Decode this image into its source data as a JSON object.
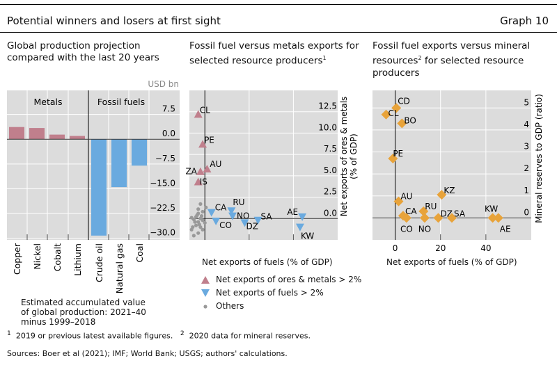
{
  "header": {
    "title": "Potential winners and losers at first sight",
    "graph_label": "Graph 10"
  },
  "chart_data": [
    {
      "type": "bar",
      "title": "Global production projection compared with the last 20 years",
      "unit": "USD bn",
      "groups": [
        "Metals",
        "Fossil fuels"
      ],
      "categories": [
        "Copper",
        "Nickel",
        "Cobalt",
        "Lithium",
        "Crude oil",
        "Natural gas",
        "Coal"
      ],
      "values": [
        3.7,
        3.4,
        1.4,
        1.0,
        -29.2,
        -14.5,
        -8.0
      ],
      "group_of": [
        0,
        0,
        0,
        0,
        1,
        1,
        1
      ],
      "yticks": [
        "7.5",
        "0.0",
        "−7.5",
        "−15.0",
        "−22.5",
        "−30.0"
      ],
      "ytick_values": [
        7.5,
        0,
        -7.5,
        -15,
        -22.5,
        -30
      ],
      "ylim": [
        -30.5,
        14.8
      ],
      "note": "Estimated accumulated value of global production: 2021–40 minus 1999–2018",
      "colors": {
        "metals": "#c07f8c",
        "fuels": "#6aaadf"
      }
    },
    {
      "type": "scatter",
      "title": "Fossil fuel versus metals exports for selected resource producers",
      "title_sup": "1",
      "xlabel": "Net exports of fuels (% of GDP)",
      "ylabel": "Net exports of ores & metals (% of GDP)",
      "xlim": [
        -7,
        60
      ],
      "ylim": [
        -2.5,
        15
      ],
      "yticks": [
        "12.5",
        "10.0",
        "7.5",
        "5.0",
        "2.5",
        "0.0"
      ],
      "ytick_values": [
        12.5,
        10,
        7.5,
        5,
        2.5,
        0
      ],
      "xgrid": [
        20,
        40
      ],
      "series": [
        {
          "name": "Net exports of ores & metals > 2%",
          "marker": "triangle-up",
          "color": "#c07f8c",
          "points": [
            {
              "label": "CL",
              "x": -3,
              "y": 12.2
            },
            {
              "label": "PE",
              "x": -1,
              "y": 8.7
            },
            {
              "label": "ZA",
              "x": -2,
              "y": 5.5
            },
            {
              "label": "AU",
              "x": 1,
              "y": 5.8
            },
            {
              "label": "IS",
              "x": -3,
              "y": 4.3
            }
          ]
        },
        {
          "name": "Net exports of fuels > 2%",
          "marker": "triangle-down",
          "color": "#6aaadf",
          "points": [
            {
              "label": "CA",
              "x": 3,
              "y": 0.7
            },
            {
              "label": "CO",
              "x": 5,
              "y": -0.3
            },
            {
              "label": "RU",
              "x": 12,
              "y": 0.9
            },
            {
              "label": "NO",
              "x": 12.5,
              "y": 0.3
            },
            {
              "label": "DZ",
              "x": 18,
              "y": -0.5
            },
            {
              "label": "SA",
              "x": 24,
              "y": -0.2
            },
            {
              "label": "AE",
              "x": 44,
              "y": 0.2
            },
            {
              "label": "KW",
              "x": 43,
              "y": -1.0
            }
          ]
        },
        {
          "name": "Others",
          "marker": "dot",
          "color": "#999999",
          "points": [
            {
              "x": -2,
              "y": 1.7
            },
            {
              "x": 0.5,
              "y": 1.3
            },
            {
              "x": -1,
              "y": 0.8
            },
            {
              "x": -3,
              "y": 0.6
            },
            {
              "x": -4,
              "y": 0.2
            },
            {
              "x": -2,
              "y": 0
            },
            {
              "x": -1,
              "y": -0.2
            },
            {
              "x": -3,
              "y": -0.4
            },
            {
              "x": -5,
              "y": -0.1
            },
            {
              "x": -4,
              "y": -0.8
            },
            {
              "x": -2,
              "y": -1.0
            },
            {
              "x": -6,
              "y": -1.3
            },
            {
              "x": -3,
              "y": -1.7
            },
            {
              "x": -5,
              "y": -2.0
            },
            {
              "x": -1,
              "y": -1.3
            },
            {
              "x": 0,
              "y": -0.5
            },
            {
              "x": -3.5,
              "y": 0.4
            },
            {
              "x": -6,
              "y": 0.1
            },
            {
              "x": -2.5,
              "y": -0.7
            },
            {
              "x": -4.5,
              "y": -0.4
            },
            {
              "x": -1.5,
              "y": 0.3
            },
            {
              "x": -3,
              "y": 1.1
            },
            {
              "x": -5.5,
              "y": -1.0
            }
          ]
        }
      ]
    },
    {
      "type": "scatter",
      "title": "Fossil fuel exports versus mineral resources",
      "title_sup": "2",
      "title_rest": " for selected resource producers",
      "xlabel": "Net exports of fuels (% of GDP)",
      "ylabel": "Mineral reserves to GDP (ratio)",
      "xlim": [
        -10,
        60
      ],
      "ylim": [
        -1,
        5.8
      ],
      "xticks": [
        "0",
        "20",
        "40"
      ],
      "xtick_values": [
        0,
        20,
        40
      ],
      "yticks": [
        "5",
        "4",
        "3",
        "2",
        "1",
        "0"
      ],
      "ytick_values": [
        5,
        4,
        3,
        2,
        1,
        0
      ],
      "series": [
        {
          "name": "Mineral reserves",
          "marker": "diamond",
          "color": "#e8a33a",
          "points": [
            {
              "label": "CD",
              "x": 0.5,
              "y": 5.0
            },
            {
              "label": "CL",
              "x": -4,
              "y": 4.7
            },
            {
              "label": "BO",
              "x": 3,
              "y": 4.3
            },
            {
              "label": "PE",
              "x": -1,
              "y": 2.7
            },
            {
              "label": "KZ",
              "x": 20.5,
              "y": 1.05
            },
            {
              "label": "AU",
              "x": 1.5,
              "y": 0.75
            },
            {
              "label": "RU",
              "x": 12.5,
              "y": 0.3
            },
            {
              "label": "CA",
              "x": 3.5,
              "y": 0.1
            },
            {
              "label": "CO",
              "x": 5,
              "y": 0
            },
            {
              "label": "NO",
              "x": 13,
              "y": 0
            },
            {
              "label": "DZ",
              "x": 19,
              "y": 0
            },
            {
              "label": "SA",
              "x": 25,
              "y": 0
            },
            {
              "label": "KW",
              "x": 43,
              "y": 0
            },
            {
              "label": "AE",
              "x": 45.5,
              "y": 0
            }
          ]
        }
      ]
    }
  ],
  "footnotes": {
    "f1": "2019 or previous latest available figures.",
    "f1_mark": "1",
    "f2": "2020 data for mineral reserves.",
    "f2_mark": "2",
    "sources": "Sources: Boer et al (2021); IMF; World Bank; USGS; authors' calculations."
  }
}
